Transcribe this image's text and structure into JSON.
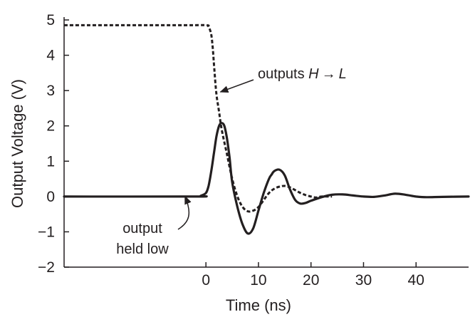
{
  "chart_data": {
    "type": "line",
    "xlabel": "Time (ns)",
    "ylabel": "Output Voltage (V)",
    "xlim": [
      -27,
      50
    ],
    "ylim": [
      -2,
      5
    ],
    "x_ticks": [
      0,
      10,
      20,
      30,
      40
    ],
    "x_tick_labels": [
      "0",
      "10",
      "20",
      "30",
      "40"
    ],
    "y_ticks": [
      -2,
      -1,
      0,
      1,
      2,
      3,
      4,
      5
    ],
    "y_tick_labels": [
      "−2",
      "−1",
      "0",
      "1",
      "2",
      "3",
      "4",
      "5"
    ],
    "grid": false,
    "series": [
      {
        "style": "dashed",
        "x": [
          -27,
          -5,
          0,
          0.5,
          1,
          1.3,
          1.6,
          2,
          2.5,
          3,
          4,
          5,
          6,
          7,
          8,
          9,
          10,
          11,
          12,
          13,
          14,
          15,
          16,
          17,
          18,
          19,
          20,
          21,
          22,
          24
        ],
        "y": [
          4.85,
          4.85,
          4.85,
          4.8,
          4.6,
          4.2,
          3.6,
          2.9,
          2.4,
          1.9,
          1.2,
          0.5,
          0.0,
          -0.3,
          -0.42,
          -0.4,
          -0.3,
          -0.1,
          0.1,
          0.22,
          0.28,
          0.3,
          0.26,
          0.18,
          0.1,
          0.04,
          0.0,
          -0.03,
          0.0,
          0.0
        ]
      },
      {
        "style": "solid",
        "x": [
          -27,
          -2,
          -1,
          0,
          0.5,
          1,
          1.5,
          2,
          2.5,
          3,
          3.5,
          4,
          4.5,
          5,
          6,
          7,
          8,
          9,
          10,
          11,
          12,
          12.5,
          13,
          14,
          15,
          16,
          17,
          18,
          19,
          20,
          22,
          24,
          26,
          28,
          30,
          32,
          34,
          36,
          38,
          40,
          42,
          45,
          50
        ],
        "y": [
          0.0,
          0.0,
          0.02,
          0.1,
          0.3,
          0.7,
          1.2,
          1.7,
          2.0,
          2.08,
          2.0,
          1.65,
          1.1,
          0.4,
          -0.3,
          -0.8,
          -1.05,
          -0.9,
          -0.4,
          0.1,
          0.5,
          0.62,
          0.72,
          0.76,
          0.6,
          0.2,
          -0.1,
          -0.2,
          -0.18,
          -0.12,
          -0.02,
          0.05,
          0.06,
          0.03,
          0.0,
          -0.01,
          0.03,
          0.08,
          0.05,
          0.0,
          -0.02,
          -0.01,
          0.0
        ]
      }
    ],
    "annotations": [
      {
        "text_prefix": "outputs ",
        "text_italic_1": "H",
        "arrow_glyph": "→",
        "text_italic_2": "L",
        "arrow_target": [
          2.2,
          3.0
        ]
      },
      {
        "line1": "output",
        "line2": "held low",
        "arrow_target": [
          -4,
          0.05
        ]
      }
    ]
  }
}
